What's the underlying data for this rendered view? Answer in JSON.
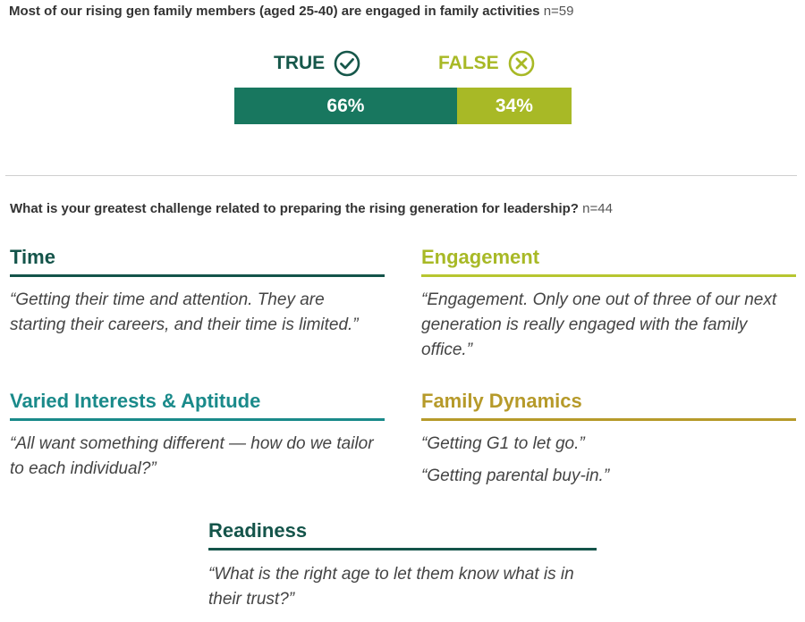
{
  "survey1": {
    "question": "Most of our rising gen family members (aged 25-40) are engaged in family activities",
    "n": "n=59",
    "true_label": "TRUE",
    "false_label": "FALSE",
    "true_pct": "66%",
    "false_pct": "34%",
    "true_fraction": 0.66,
    "false_fraction": 0.34,
    "icons": {
      "true": "check-circle-icon",
      "false": "x-circle-icon"
    },
    "colors": {
      "true": "#18775f",
      "false": "#a8b926"
    }
  },
  "survey2": {
    "question": "What is your greatest challenge related to preparing the rising generation for leadership?",
    "n": "n=44"
  },
  "categories": {
    "time": {
      "title": "Time",
      "quotes": [
        "“Getting their time and attention. They are starting their careers, and their time is limited.”"
      ]
    },
    "engagement": {
      "title": "Engagement",
      "quotes": [
        "“Engagement. Only one out of three of our next generation is really engaged with the family office.”"
      ]
    },
    "varied": {
      "title": "Varied Interests & Aptitude",
      "quotes": [
        "“All want something different — how do we tailor to each individual?”"
      ]
    },
    "family": {
      "title": "Family Dynamics",
      "quotes": [
        "“Getting G1 to let go.”",
        "“Getting parental buy-in.”"
      ]
    },
    "readiness": {
      "title": "Readiness",
      "quotes": [
        "“What is the right age to let them know what is in their trust?”"
      ]
    }
  }
}
